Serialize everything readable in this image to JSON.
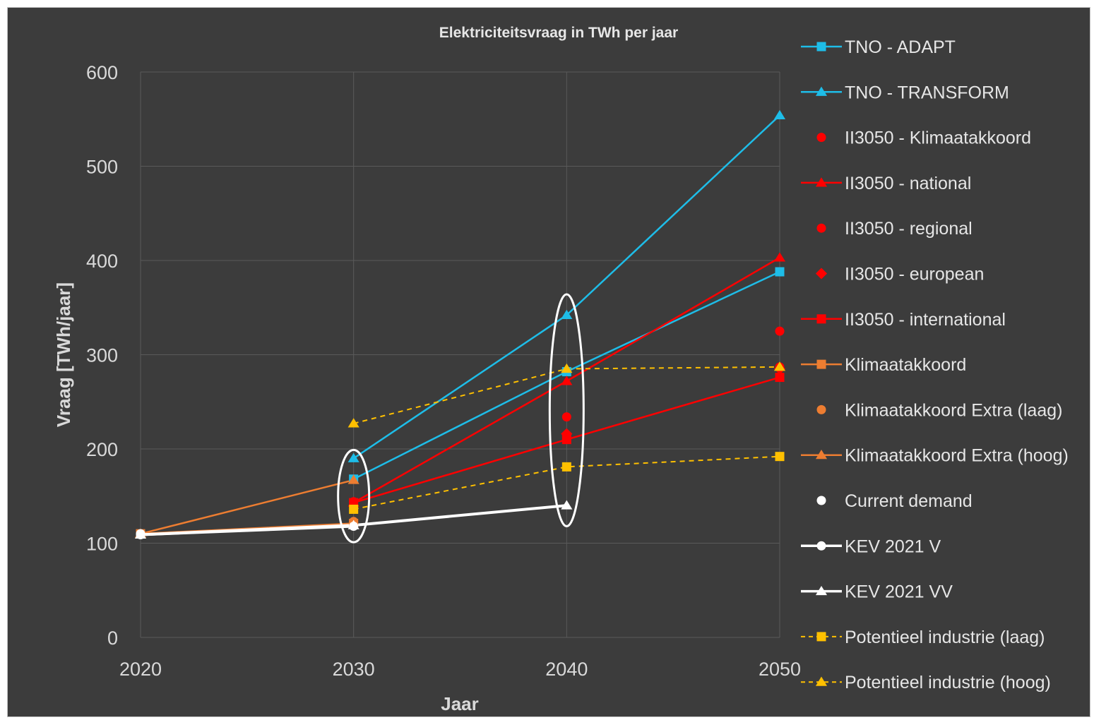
{
  "chart_data": {
    "type": "line",
    "title": "Elektriciteitsvraag in TWh per jaar",
    "xlabel": "Jaar",
    "ylabel": "Vraag [TWh/jaar]",
    "x_ticks": [
      "2020",
      "2030",
      "2040",
      "2050"
    ],
    "y_ticks": [
      "0",
      "100",
      "200",
      "300",
      "400",
      "500",
      "600"
    ],
    "xlim": [
      2020,
      2050
    ],
    "ylim": [
      0,
      600
    ],
    "grid": true,
    "legend_position": "right",
    "series": [
      {
        "name": "TNO - ADAPT",
        "color": "#1ebde8",
        "marker": "square",
        "line": "solid",
        "points": [
          [
            2030,
            168
          ],
          [
            2040,
            282
          ],
          [
            2050,
            388
          ]
        ]
      },
      {
        "name": "TNO - TRANSFORM",
        "color": "#1ebde8",
        "marker": "triangle",
        "line": "solid",
        "points": [
          [
            2030,
            190
          ],
          [
            2040,
            342
          ],
          [
            2050,
            554
          ]
        ]
      },
      {
        "name": "II3050 - Klimaatakkoord",
        "color": "#ff0000",
        "marker": "circle",
        "line": "none",
        "points": [
          [
            2030,
            144
          ],
          [
            2040,
            234
          ],
          [
            2050,
            325
          ]
        ]
      },
      {
        "name": "II3050 - national",
        "color": "#ff0000",
        "marker": "triangle",
        "line": "solid",
        "points": [
          [
            2030,
            143
          ],
          [
            2040,
            272
          ],
          [
            2050,
            403
          ]
        ]
      },
      {
        "name": "II3050 - regional",
        "color": "#ff0000",
        "marker": "circle",
        "line": "none",
        "points": [
          [
            2040,
            213
          ],
          [
            2050,
            287
          ]
        ]
      },
      {
        "name": "II3050 - european",
        "color": "#ff0000",
        "marker": "diamond",
        "line": "none",
        "points": [
          [
            2040,
            216
          ],
          [
            2050,
            285
          ]
        ]
      },
      {
        "name": "II3050 - international",
        "color": "#ff0000",
        "marker": "square",
        "line": "solid",
        "points": [
          [
            2030,
            143
          ],
          [
            2040,
            210
          ],
          [
            2050,
            276
          ]
        ]
      },
      {
        "name": "Klimaatakkoord",
        "color": "#ed7d31",
        "marker": "square",
        "line": "solid",
        "points": [
          [
            2020,
            110
          ],
          [
            2030,
            121
          ]
        ]
      },
      {
        "name": "Klimaatakkoord Extra (laag)",
        "color": "#ed7d31",
        "marker": "circle",
        "line": "none",
        "points": [
          [
            2030,
            123
          ]
        ]
      },
      {
        "name": "Klimaatakkoord Extra (hoog)",
        "color": "#ed7d31",
        "marker": "triangle",
        "line": "solid",
        "points": [
          [
            2020,
            110
          ],
          [
            2030,
            167
          ]
        ]
      },
      {
        "name": "Current demand",
        "color": "#ffffff",
        "marker": "circle",
        "line": "none",
        "points": [
          [
            2020,
            110
          ]
        ]
      },
      {
        "name": "KEV 2021 V",
        "color": "#ffffff",
        "marker": "circle",
        "line": "solid",
        "points": [
          [
            2020,
            109
          ],
          [
            2030,
            118
          ]
        ]
      },
      {
        "name": "KEV 2021 VV",
        "color": "#ffffff",
        "marker": "triangle",
        "line": "solid",
        "points": [
          [
            2020,
            109
          ],
          [
            2030,
            119
          ],
          [
            2040,
            140
          ]
        ]
      },
      {
        "name": "Potentieel industrie (laag)",
        "color": "#ffc000",
        "marker": "square",
        "line": "dashed",
        "points": [
          [
            2030,
            136
          ],
          [
            2040,
            181
          ],
          [
            2050,
            192
          ]
        ]
      },
      {
        "name": "Potentieel industrie (hoog)",
        "color": "#ffc000",
        "marker": "triangle",
        "line": "dashed",
        "points": [
          [
            2030,
            227
          ],
          [
            2040,
            285
          ],
          [
            2050,
            287
          ]
        ]
      }
    ],
    "annotations": [
      {
        "type": "ellipse",
        "color": "#ffffff",
        "x_center": 2030,
        "y_range": [
          101,
          199
        ]
      },
      {
        "type": "ellipse",
        "color": "#ffffff",
        "x_center": 2040,
        "y_range": [
          118,
          364
        ]
      }
    ]
  }
}
